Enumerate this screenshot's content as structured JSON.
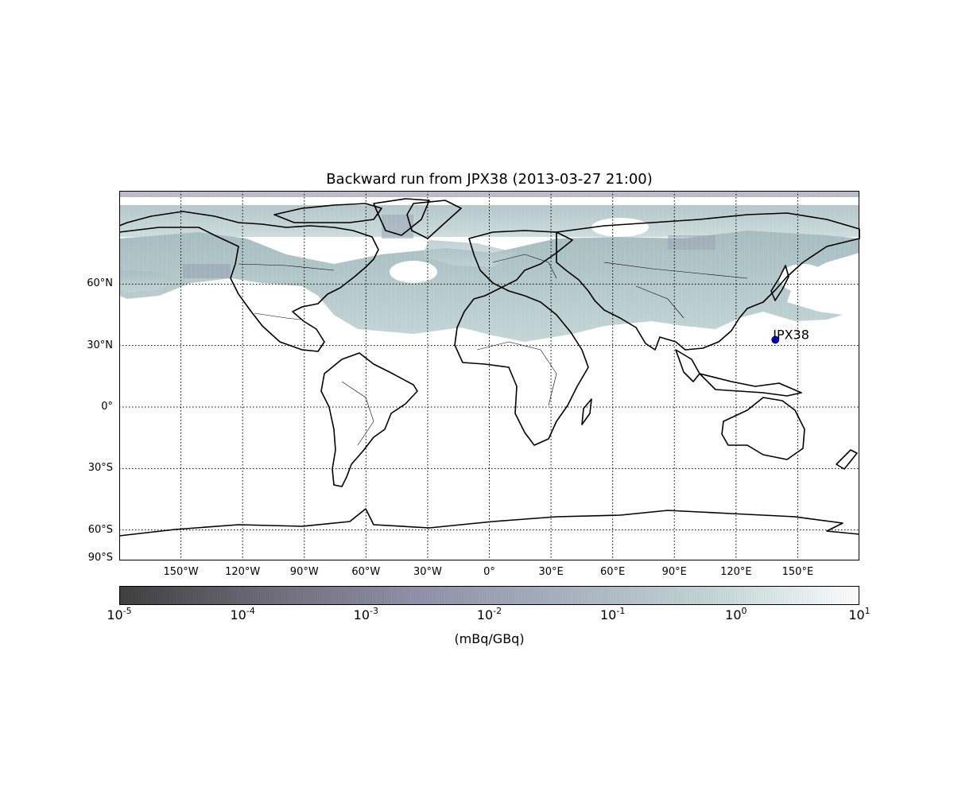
{
  "map": {
    "title": "Backward run from JPX38 (2013-03-27 21:00)",
    "projection": "cylindrical",
    "extent": {
      "lon": [
        -180,
        180
      ],
      "lat": [
        -90,
        90
      ]
    },
    "grid": true,
    "lat_labels": [
      {
        "lat": 60,
        "label": "60°N"
      },
      {
        "lat": 30,
        "label": "30°N"
      },
      {
        "lat": 0,
        "label": "0°"
      },
      {
        "lat": -30,
        "label": "30°S"
      },
      {
        "lat": -60,
        "label": "60°S"
      },
      {
        "lat": -90,
        "label": "90°S"
      }
    ],
    "lon_labels": [
      {
        "lon": -150,
        "label": "150°W"
      },
      {
        "lon": -120,
        "label": "120°W"
      },
      {
        "lon": -90,
        "label": "90°W"
      },
      {
        "lon": -60,
        "label": "60°W"
      },
      {
        "lon": -30,
        "label": "30°W"
      },
      {
        "lon": 0,
        "label": "0°"
      },
      {
        "lon": 30,
        "label": "30°E"
      },
      {
        "lon": 60,
        "label": "60°E"
      },
      {
        "lon": 90,
        "label": "90°E"
      },
      {
        "lon": 120,
        "label": "120°E"
      },
      {
        "lon": 150,
        "label": "150°E"
      }
    ],
    "station": {
      "label": "JPX38",
      "lon": 139.1,
      "lat": 36.3,
      "color": "#0000ff"
    },
    "plume_color": "#b7cccc"
  },
  "colorbar": {
    "scale": "log",
    "min": 1e-05,
    "max": 10,
    "unit": "(mBq/GBq)",
    "colors": [
      "#404040",
      "#6e6e7a",
      "#9292aa",
      "#aab4c0",
      "#c4d8d8",
      "#ffffff"
    ],
    "ticks": [
      {
        "base": "10",
        "exp": "-5"
      },
      {
        "base": "10",
        "exp": "-4"
      },
      {
        "base": "10",
        "exp": "-3"
      },
      {
        "base": "10",
        "exp": "-2"
      },
      {
        "base": "10",
        "exp": "-1"
      },
      {
        "base": "10",
        "exp": "0"
      },
      {
        "base": "10",
        "exp": "1"
      }
    ]
  }
}
